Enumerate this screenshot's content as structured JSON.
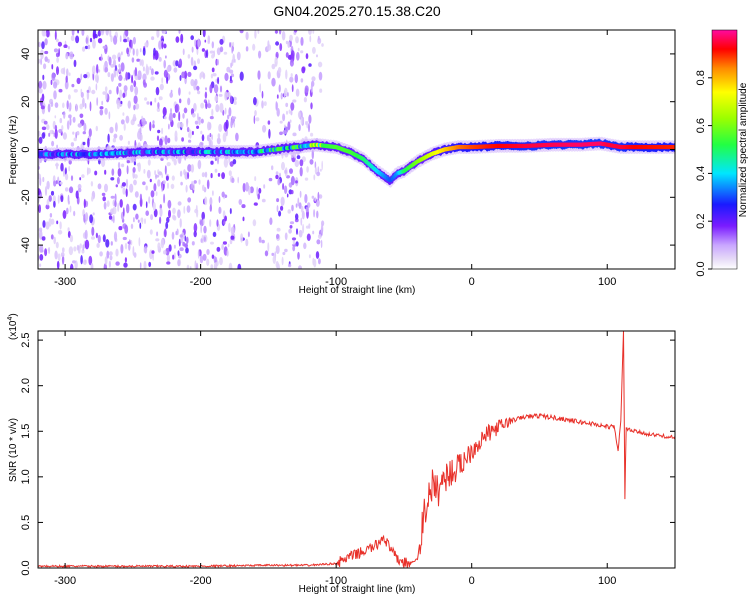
{
  "title": "GN04.2025.270.15.38.C20",
  "colors": {
    "snr_line": "#e8312a",
    "axis": "#000000",
    "background": "#ffffff"
  },
  "chart_data": [
    {
      "type": "heatmap",
      "name": "spectrogram",
      "xlabel": "Height of straight line (km)",
      "ylabel": "Frequency (Hz)",
      "xlim": [
        -320,
        150
      ],
      "ylim": [
        -50,
        50
      ],
      "xticks": [
        -300,
        -200,
        -100,
        0,
        100
      ],
      "yticks": [
        -40,
        -20,
        0,
        20,
        40
      ],
      "colorbar": {
        "label": "Normalized spectral amplitude",
        "range": [
          0,
          1
        ],
        "ticks": [
          "0.0",
          "0.2",
          "0.4",
          "0.6",
          "0.8"
        ],
        "tick_values": [
          0.0,
          0.2,
          0.4,
          0.6,
          0.8
        ]
      },
      "frequency_track": {
        "x": [
          -320,
          -280,
          -240,
          -200,
          -160,
          -130,
          -115,
          -100,
          -90,
          -80,
          -70,
          -60,
          -55,
          -50,
          -40,
          -30,
          -20,
          -10,
          0,
          20,
          40,
          60,
          80,
          95,
          100,
          110,
          120,
          150
        ],
        "y": [
          -2,
          -2,
          -1,
          -1,
          -1,
          1,
          2,
          1,
          -1,
          -4,
          -9,
          -13,
          -10,
          -9,
          -5,
          -2,
          0,
          1,
          1,
          1.5,
          1.5,
          2,
          2,
          2.5,
          2,
          1,
          1,
          1
        ],
        "amplitude": [
          0.25,
          0.3,
          0.3,
          0.3,
          0.35,
          0.45,
          0.5,
          0.55,
          0.55,
          0.5,
          0.4,
          0.3,
          0.35,
          0.5,
          0.6,
          0.7,
          0.78,
          0.85,
          0.88,
          0.92,
          0.95,
          0.96,
          0.97,
          0.97,
          0.95,
          0.95,
          0.92,
          0.9
        ]
      },
      "noise_region": [
        -320,
        -110
      ]
    },
    {
      "type": "line",
      "name": "snr",
      "xlabel": "Height of straight line (km)",
      "ylabel": "SNR (10 * v/v)",
      "y_multiplier": "(x10",
      "y_multiplier_exp": "4",
      "y_multiplier_close": ")",
      "xlim": [
        -320,
        150
      ],
      "ylim": [
        0,
        2.6
      ],
      "xticks": [
        -300,
        -200,
        -100,
        0,
        100
      ],
      "yticks": [
        0.0,
        0.5,
        1.0,
        1.5,
        2.0,
        2.5
      ],
      "ytick_labels": [
        "0.0",
        "0.5",
        "1.0",
        "1.5",
        "2.0",
        "2.5"
      ],
      "series": [
        {
          "name": "SNR",
          "x": [
            -320,
            -260,
            -200,
            -150,
            -120,
            -100,
            -90,
            -80,
            -70,
            -65,
            -60,
            -55,
            -50,
            -45,
            -40,
            -35,
            -30,
            -25,
            -20,
            -15,
            -10,
            -5,
            0,
            10,
            20,
            30,
            40,
            50,
            60,
            70,
            80,
            90,
            100,
            105,
            108,
            110,
            112,
            113,
            114,
            115,
            120,
            130,
            150
          ],
          "y": [
            0.02,
            0.02,
            0.02,
            0.03,
            0.03,
            0.05,
            0.12,
            0.18,
            0.25,
            0.35,
            0.2,
            0.1,
            0.06,
            0.05,
            0.1,
            0.6,
            0.9,
            0.85,
            1.0,
            1.05,
            1.1,
            1.2,
            1.3,
            1.45,
            1.55,
            1.62,
            1.66,
            1.67,
            1.65,
            1.63,
            1.6,
            1.58,
            1.55,
            1.55,
            1.3,
            1.6,
            2.6,
            0.77,
            1.55,
            1.52,
            1.5,
            1.47,
            1.43
          ]
        }
      ]
    }
  ]
}
